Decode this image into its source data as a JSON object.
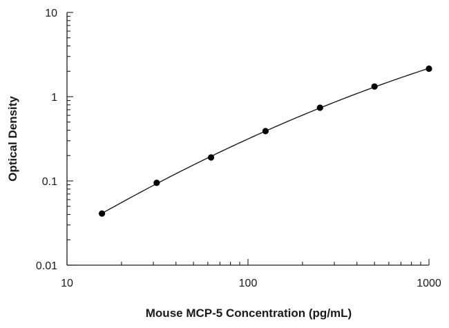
{
  "chart_data": {
    "type": "scatter",
    "title": "",
    "xlabel": "Mouse MCP-5 Concentration (pg/mL)",
    "ylabel": "Optical Density",
    "xscale": "log",
    "yscale": "log",
    "xlim": [
      10,
      1000
    ],
    "ylim": [
      0.01,
      10
    ],
    "xticks": [
      10,
      100,
      1000
    ],
    "xtick_labels": [
      "10",
      "100",
      "1000"
    ],
    "yticks": [
      0.01,
      0.1,
      1,
      10
    ],
    "ytick_labels": [
      "0.01",
      "0.1",
      "1",
      "10"
    ],
    "grid": false,
    "legend": "none",
    "series": [
      {
        "x": [
          15.6,
          31.3,
          62.5,
          125,
          250,
          500,
          1000
        ],
        "y": [
          0.041,
          0.095,
          0.19,
          0.39,
          0.74,
          1.32,
          2.15
        ],
        "marker": "circle",
        "fit_line": true,
        "color": "#000000"
      }
    ]
  }
}
